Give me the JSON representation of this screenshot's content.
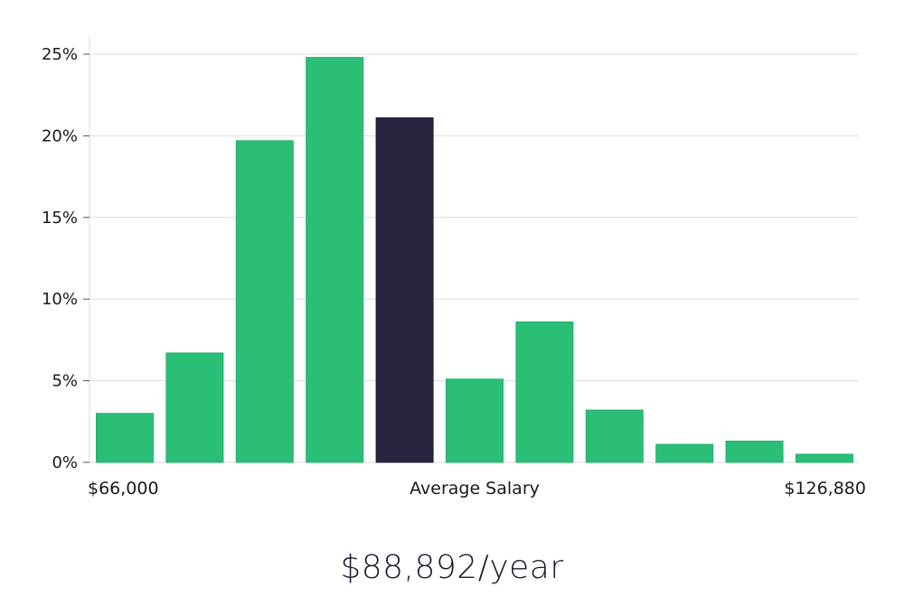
{
  "chart_data": {
    "type": "bar",
    "values": [
      3.0,
      6.7,
      19.7,
      24.8,
      21.1,
      5.1,
      8.6,
      3.2,
      1.1,
      1.3,
      0.5
    ],
    "highlight_index": 4,
    "ylim": [
      0,
      25
    ],
    "yticks": [
      "0%",
      "5%",
      "10%",
      "15%",
      "20%",
      "25%"
    ],
    "ytick_values": [
      0,
      5,
      10,
      15,
      20,
      25
    ],
    "x_labels": {
      "min": "$66,000",
      "middle": "Average Salary",
      "max": "$126,880"
    },
    "grid": true,
    "colors": {
      "bar": "#2abe77",
      "highlight": "#28233f",
      "grid": "#dddddd"
    }
  },
  "salary_caption": "$88,892/year"
}
